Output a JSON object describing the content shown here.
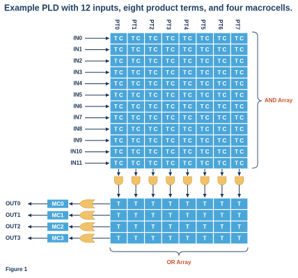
{
  "title": "Example PLD with 12 inputs, eight product terms, and four macrocells.",
  "and_array": {
    "label": "AND Array",
    "cell_label": "T C",
    "columns": [
      "PT0",
      "PT1",
      "PT2",
      "PT3",
      "PT4",
      "PT5",
      "PT6",
      "PT7"
    ],
    "inputs": [
      "IN0",
      "IN1",
      "IN2",
      "IN3",
      "IN4",
      "IN5",
      "IN6",
      "IN7",
      "IN8",
      "IN9",
      "IN10",
      "IN11"
    ]
  },
  "or_array": {
    "label": "OR Array",
    "cell_label": "T",
    "macrocells": [
      "MC0",
      "MC1",
      "MC2",
      "MC3"
    ],
    "outputs": [
      "OUT0",
      "OUT1",
      "OUT2",
      "OUT3"
    ]
  },
  "figure_label": "Figure 1"
}
